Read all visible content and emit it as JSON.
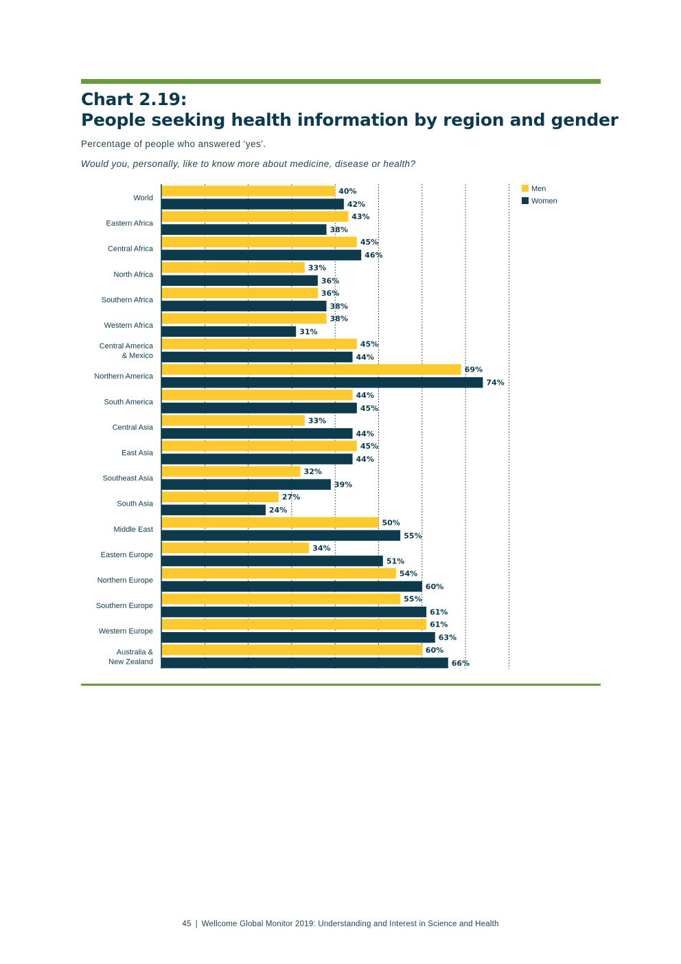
{
  "header": {
    "chart_number": "Chart 2.19:",
    "title": "People seeking health information by region and gender",
    "subtitle": "Percentage of people who answered ‘yes’.",
    "question": "Would you, personally, like to know more about medicine, disease or health?"
  },
  "footer": {
    "page_number": "45",
    "separator": "|",
    "publication": "Wellcome Global Monitor 2019: Understanding and Interest in Science and Health"
  },
  "colors": {
    "men": "#fcca2e",
    "women": "#0d3a4d",
    "text": "#0b3a4f",
    "rule": "#6a9a3e"
  },
  "chart_data": {
    "type": "bar",
    "orientation": "horizontal",
    "title": "People seeking health information by region and gender",
    "xlabel": "",
    "ylabel": "",
    "xlim": [
      0,
      80
    ],
    "grid": true,
    "legend": "top-right",
    "value_suffix": "%",
    "categories": [
      [
        "World"
      ],
      [
        "Eastern Africa"
      ],
      [
        "Central Africa"
      ],
      [
        "North Africa"
      ],
      [
        "Southern Africa"
      ],
      [
        "Western Africa"
      ],
      [
        "Central America",
        "& Mexico"
      ],
      [
        "Northern America"
      ],
      [
        "South America"
      ],
      [
        "Central Asia"
      ],
      [
        "East Asia"
      ],
      [
        "Southeast Asia"
      ],
      [
        "South Asia"
      ],
      [
        "Middle East"
      ],
      [
        "Eastern Europe"
      ],
      [
        "Northern Europe"
      ],
      [
        "Southern Europe"
      ],
      [
        "Western Europe"
      ],
      [
        "Australia &",
        "New Zealand"
      ]
    ],
    "series": [
      {
        "name": "Men",
        "values": [
          40,
          43,
          45,
          33,
          36,
          38,
          45,
          69,
          44,
          33,
          45,
          32,
          27,
          50,
          34,
          54,
          55,
          61,
          60
        ]
      },
      {
        "name": "Women",
        "values": [
          42,
          38,
          46,
          36,
          38,
          31,
          44,
          74,
          45,
          44,
          44,
          39,
          24,
          55,
          51,
          60,
          61,
          63,
          66
        ]
      }
    ]
  }
}
